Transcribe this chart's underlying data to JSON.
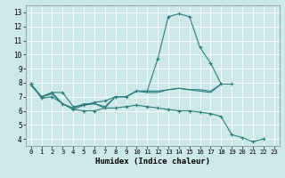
{
  "xlabel": "Humidex (Indice chaleur)",
  "background_color": "#cce8e8",
  "line_color": "#2d7d7d",
  "grid_color": "#ffffff",
  "xlim": [
    -0.5,
    23.5
  ],
  "ylim": [
    3.5,
    13.5
  ],
  "xticks": [
    0,
    1,
    2,
    3,
    4,
    5,
    6,
    7,
    8,
    9,
    10,
    11,
    12,
    13,
    14,
    15,
    16,
    17,
    18,
    19,
    20,
    21,
    22,
    23
  ],
  "yticks": [
    4,
    5,
    6,
    7,
    8,
    9,
    10,
    11,
    12,
    13
  ],
  "lines": [
    {
      "x": [
        0,
        1,
        2,
        3,
        4,
        5,
        6,
        7,
        8,
        9,
        10,
        11,
        12,
        13,
        14,
        15,
        16,
        17,
        18,
        19
      ],
      "y": [
        7.9,
        7.0,
        7.3,
        7.3,
        6.3,
        6.4,
        6.6,
        6.7,
        7.0,
        7.0,
        7.4,
        7.4,
        9.7,
        12.7,
        12.9,
        12.7,
        10.5,
        9.4,
        7.9,
        7.9
      ],
      "marker": true
    },
    {
      "x": [
        0,
        1,
        2,
        3,
        4,
        5,
        6,
        7,
        8,
        9,
        10,
        11,
        12,
        13,
        14,
        15,
        16,
        17,
        18
      ],
      "y": [
        7.9,
        7.0,
        7.3,
        6.5,
        6.2,
        6.5,
        6.5,
        6.3,
        7.0,
        7.0,
        7.4,
        7.4,
        7.4,
        7.5,
        7.6,
        7.5,
        7.5,
        7.4,
        7.9
      ],
      "marker": false
    },
    {
      "x": [
        0,
        1,
        2,
        3,
        4,
        5,
        6,
        7,
        8,
        9,
        10,
        11,
        12,
        13,
        14,
        15,
        16,
        17,
        18
      ],
      "y": [
        7.8,
        7.0,
        7.2,
        6.5,
        6.1,
        6.4,
        6.5,
        6.2,
        7.0,
        7.0,
        7.4,
        7.3,
        7.3,
        7.5,
        7.6,
        7.5,
        7.4,
        7.3,
        7.9
      ],
      "marker": false
    },
    {
      "x": [
        0,
        1,
        2,
        3,
        4,
        5,
        6,
        7,
        8,
        9,
        10,
        11,
        12,
        13,
        14,
        15,
        16,
        17,
        18,
        19,
        20,
        21,
        22
      ],
      "y": [
        7.9,
        6.9,
        7.0,
        6.5,
        6.1,
        6.0,
        6.0,
        6.2,
        6.2,
        6.3,
        6.4,
        6.3,
        6.2,
        6.1,
        6.0,
        6.0,
        5.9,
        5.8,
        5.6,
        4.3,
        4.1,
        3.8,
        4.0
      ],
      "marker": true
    }
  ]
}
